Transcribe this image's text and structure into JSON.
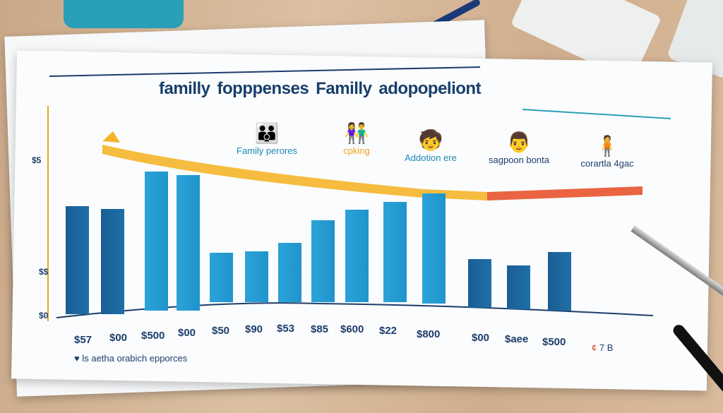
{
  "chart_data": {
    "type": "bar",
    "title": [
      "familly",
      "fopppenses",
      "Familly",
      "adopopeliont"
    ],
    "categories": [
      "$57",
      "$00",
      "$500",
      "$00",
      "$50",
      "$90",
      "$53",
      "$85",
      "$600",
      "$22",
      "$800",
      "$00",
      "$aee",
      "$500"
    ],
    "values": [
      153,
      149,
      197,
      192,
      70,
      72,
      84,
      116,
      131,
      142,
      156,
      69,
      62,
      83
    ],
    "xlabel": "",
    "ylabel": "",
    "y_tick_labels": [
      "$0",
      "$$",
      "$5"
    ],
    "legend_groups": [
      {
        "label": "Family perores",
        "icon": "family-icon",
        "color": "#1e88b8"
      },
      {
        "label": "cpking",
        "icon": "parents-icon",
        "color": "#f0a51c"
      },
      {
        "label": "Addotion ere",
        "icon": "child-icon",
        "color": "#1e88b8"
      },
      {
        "label": "sagpoon bonta",
        "icon": "adult-child-icon",
        "color": "#1d3d6b"
      },
      {
        "label": "corartla 4gac",
        "icon": "person-icon",
        "color": "#1d3d6b"
      }
    ],
    "band_colors": [
      "#f5b52a",
      "#e8532d"
    ],
    "bar_colors": [
      "#1a5e95",
      "#2ba3d8"
    ],
    "grid": false
  },
  "footer": {
    "note": "ls aetha orabich epporces",
    "corner_prefix": "¢",
    "corner_value": "7 B"
  }
}
